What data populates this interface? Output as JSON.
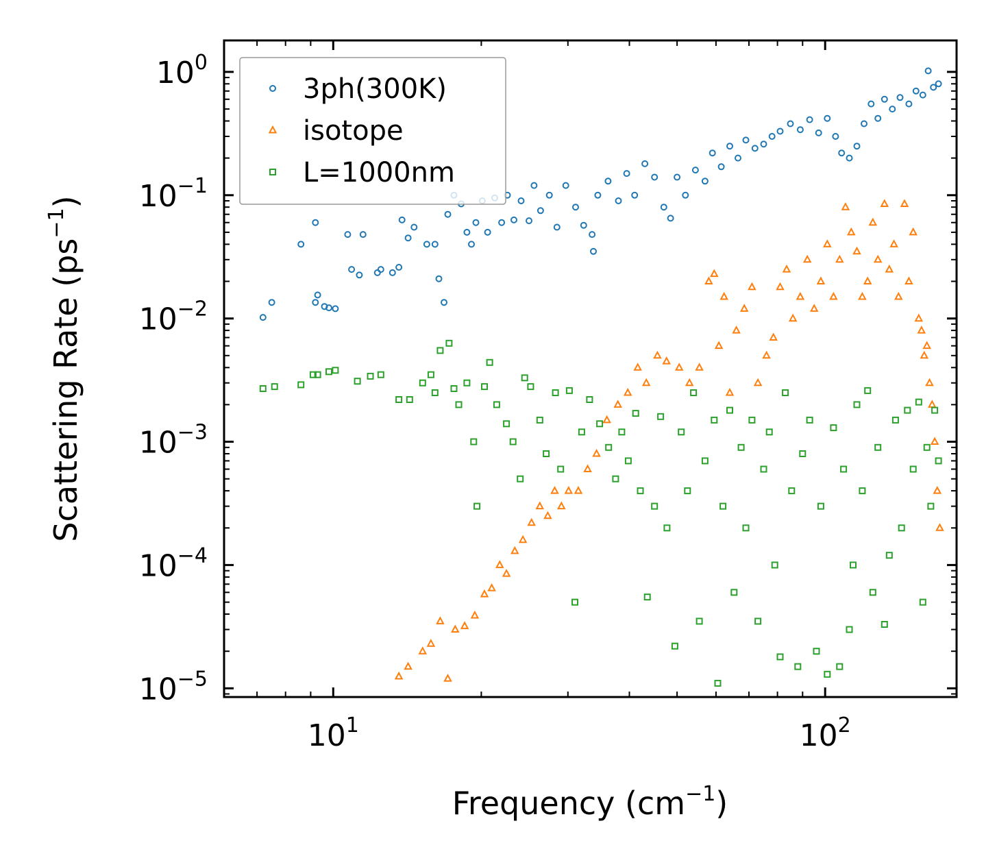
{
  "chart_data": {
    "type": "scatter",
    "title": "",
    "xscale": "log",
    "yscale": "log",
    "xlim": [
      6.0,
      185
    ],
    "ylim": [
      8.5e-06,
      1.8
    ],
    "xlabel": {
      "text": "Frequency (cm",
      "sup": "−1",
      "tail": ")"
    },
    "ylabel": {
      "text": "Scattering Rate (ps",
      "sup": "−1",
      "tail": ")"
    },
    "xticks": [
      {
        "value": 10,
        "base": "10",
        "exp": "1"
      },
      {
        "value": 100,
        "base": "10",
        "exp": "2"
      }
    ],
    "yticks": [
      {
        "value": 1,
        "base": "10",
        "exp": "0"
      },
      {
        "value": 0.1,
        "base": "10",
        "exp": "−1"
      },
      {
        "value": 0.01,
        "base": "10",
        "exp": "−2"
      },
      {
        "value": 0.001,
        "base": "10",
        "exp": "−3"
      },
      {
        "value": 0.0001,
        "base": "10",
        "exp": "−4"
      },
      {
        "value": 1e-05,
        "base": "10",
        "exp": "−5"
      }
    ],
    "legend_position": "upper-left",
    "series": [
      {
        "name": "3ph(300K)",
        "marker": "circle",
        "color": "#1f77b4",
        "sampled": true,
        "points": [
          [
            7.2,
            0.0102
          ],
          [
            7.5,
            0.0135
          ],
          [
            8.6,
            0.04
          ],
          [
            9.2,
            0.06
          ],
          [
            9.2,
            0.0135
          ],
          [
            9.3,
            0.0155
          ],
          [
            9.6,
            0.0125
          ],
          [
            9.8,
            0.0122
          ],
          [
            10.1,
            0.012
          ],
          [
            10.7,
            0.048
          ],
          [
            10.9,
            0.025
          ],
          [
            11.3,
            0.0225
          ],
          [
            11.5,
            0.048
          ],
          [
            12.3,
            0.0235
          ],
          [
            12.5,
            0.025
          ],
          [
            13.2,
            0.0235
          ],
          [
            13.6,
            0.026
          ],
          [
            13.8,
            0.063
          ],
          [
            14.2,
            0.045
          ],
          [
            14.6,
            0.055
          ],
          [
            15.5,
            0.04
          ],
          [
            16.1,
            0.04
          ],
          [
            16.4,
            0.021
          ],
          [
            16.8,
            0.0135
          ],
          [
            17.1,
            0.07
          ],
          [
            17.6,
            0.1
          ],
          [
            18.2,
            0.085
          ],
          [
            18.7,
            0.05
          ],
          [
            19.1,
            0.04
          ],
          [
            19.5,
            0.06
          ],
          [
            20.1,
            0.09
          ],
          [
            20.6,
            0.05
          ],
          [
            21.3,
            0.095
          ],
          [
            22.0,
            0.06
          ],
          [
            22.6,
            0.1
          ],
          [
            23.3,
            0.063
          ],
          [
            24.1,
            0.09
          ],
          [
            25.0,
            0.062
          ],
          [
            25.6,
            0.12
          ],
          [
            26.4,
            0.075
          ],
          [
            27.5,
            0.1
          ],
          [
            28.5,
            0.055
          ],
          [
            29.7,
            0.12
          ],
          [
            31.1,
            0.08
          ],
          [
            32.3,
            0.057
          ],
          [
            33.6,
            0.048
          ],
          [
            33.8,
            0.035
          ],
          [
            34.5,
            0.1
          ],
          [
            36.2,
            0.13
          ],
          [
            38.0,
            0.09
          ],
          [
            39.5,
            0.15
          ],
          [
            41.0,
            0.1
          ],
          [
            43.0,
            0.18
          ],
          [
            45.0,
            0.14
          ],
          [
            47.0,
            0.08
          ],
          [
            48.5,
            0.065
          ],
          [
            50.0,
            0.14
          ],
          [
            52.0,
            0.1
          ],
          [
            54.5,
            0.16
          ],
          [
            57.0,
            0.13
          ],
          [
            59.0,
            0.22
          ],
          [
            61.5,
            0.17
          ],
          [
            64.0,
            0.25
          ],
          [
            66.5,
            0.2
          ],
          [
            69.0,
            0.28
          ],
          [
            72.0,
            0.24
          ],
          [
            75.0,
            0.26
          ],
          [
            78.0,
            0.3
          ],
          [
            81.0,
            0.33
          ],
          [
            85.0,
            0.38
          ],
          [
            89.0,
            0.34
          ],
          [
            93.0,
            0.41
          ],
          [
            97.0,
            0.32
          ],
          [
            101.0,
            0.42
          ],
          [
            105.0,
            0.3
          ],
          [
            108.0,
            0.22
          ],
          [
            112.0,
            0.2
          ],
          [
            116.0,
            0.25
          ],
          [
            120.0,
            0.38
          ],
          [
            124.0,
            0.55
          ],
          [
            128.0,
            0.42
          ],
          [
            132.0,
            0.6
          ],
          [
            137.0,
            0.5
          ],
          [
            142.0,
            0.62
          ],
          [
            148.0,
            0.55
          ],
          [
            153.0,
            0.7
          ],
          [
            158.0,
            0.65
          ],
          [
            162.0,
            1.02
          ],
          [
            166.0,
            0.75
          ],
          [
            170.0,
            0.8
          ]
        ]
      },
      {
        "name": "isotope",
        "marker": "triangle",
        "color": "#ff7f0e",
        "sampled": true,
        "points": [
          [
            13.6,
            1.25e-05
          ],
          [
            14.2,
            1.5e-05
          ],
          [
            15.2,
            2e-05
          ],
          [
            15.8,
            2.3e-05
          ],
          [
            16.5,
            3.5e-05
          ],
          [
            17.1,
            1.2e-05
          ],
          [
            17.7,
            3e-05
          ],
          [
            18.5,
            3.2e-05
          ],
          [
            19.4,
            3.9e-05
          ],
          [
            20.3,
            5.8e-05
          ],
          [
            21.0,
            6.5e-05
          ],
          [
            21.8,
            0.0001
          ],
          [
            22.5,
            8.5e-05
          ],
          [
            23.4,
            0.00013
          ],
          [
            24.3,
            0.00016
          ],
          [
            25.3,
            0.00022
          ],
          [
            26.3,
            0.0003
          ],
          [
            27.3,
            0.00025
          ],
          [
            28.2,
            0.0004
          ],
          [
            29.1,
            0.0003
          ],
          [
            30.1,
            0.0004
          ],
          [
            31.5,
            0.0004
          ],
          [
            32.9,
            0.0006
          ],
          [
            34.3,
            0.0008
          ],
          [
            36.0,
            0.0015
          ],
          [
            37.9,
            0.002
          ],
          [
            39.7,
            0.0025
          ],
          [
            41.6,
            0.004
          ],
          [
            43.3,
            0.003
          ],
          [
            45.6,
            0.005
          ],
          [
            47.6,
            0.0045
          ],
          [
            50.5,
            0.004
          ],
          [
            53.0,
            0.003
          ],
          [
            55.5,
            0.004
          ],
          [
            58.0,
            0.02
          ],
          [
            59.5,
            0.023
          ],
          [
            60.8,
            0.006
          ],
          [
            62.3,
            0.015
          ],
          [
            64.0,
            0.0025
          ],
          [
            66.0,
            0.008
          ],
          [
            68.5,
            0.012
          ],
          [
            71.0,
            0.018
          ],
          [
            73.0,
            0.003
          ],
          [
            76.0,
            0.005
          ],
          [
            78.5,
            0.007
          ],
          [
            81.0,
            0.018
          ],
          [
            83.5,
            0.025
          ],
          [
            86.0,
            0.01
          ],
          [
            89.0,
            0.015
          ],
          [
            92.0,
            0.03
          ],
          [
            95.0,
            0.012
          ],
          [
            98.0,
            0.02
          ],
          [
            101.0,
            0.04
          ],
          [
            104.0,
            0.015
          ],
          [
            107.0,
            0.03
          ],
          [
            110.0,
            0.08
          ],
          [
            113.0,
            0.05
          ],
          [
            116.0,
            0.035
          ],
          [
            119.0,
            0.015
          ],
          [
            122.0,
            0.02
          ],
          [
            125.0,
            0.06
          ],
          [
            128.0,
            0.03
          ],
          [
            132.0,
            0.085
          ],
          [
            135.0,
            0.025
          ],
          [
            138.0,
            0.04
          ],
          [
            141.0,
            0.015
          ],
          [
            145.0,
            0.085
          ],
          [
            148.0,
            0.02
          ],
          [
            151.0,
            0.05
          ],
          [
            155.0,
            0.01
          ],
          [
            159.0,
            0.005
          ],
          [
            163.0,
            0.003
          ],
          [
            165.0,
            0.002
          ],
          [
            167.0,
            0.001
          ],
          [
            169.0,
            0.0004
          ],
          [
            171.0,
            0.0002
          ],
          [
            161.0,
            0.006
          ],
          [
            157.0,
            0.008
          ]
        ]
      },
      {
        "name": "L=1000nm",
        "marker": "square",
        "color": "#2ca02c",
        "sampled": true,
        "points": [
          [
            7.2,
            0.0027
          ],
          [
            7.6,
            0.0028
          ],
          [
            8.6,
            0.0029
          ],
          [
            9.1,
            0.0035
          ],
          [
            9.3,
            0.0035
          ],
          [
            9.8,
            0.0037
          ],
          [
            10.1,
            0.0038
          ],
          [
            11.2,
            0.0031
          ],
          [
            11.9,
            0.0034
          ],
          [
            12.5,
            0.0035
          ],
          [
            13.6,
            0.0022
          ],
          [
            14.3,
            0.0022
          ],
          [
            15.2,
            0.003
          ],
          [
            15.8,
            0.0035
          ],
          [
            16.1,
            0.0025
          ],
          [
            16.5,
            0.0055
          ],
          [
            17.2,
            0.0063
          ],
          [
            17.6,
            0.0027
          ],
          [
            18.0,
            0.002
          ],
          [
            18.7,
            0.003
          ],
          [
            19.3,
            0.001
          ],
          [
            19.6,
            0.0003
          ],
          [
            20.3,
            0.0028
          ],
          [
            20.8,
            0.0044
          ],
          [
            21.5,
            0.002
          ],
          [
            22.5,
            0.0014
          ],
          [
            23.2,
            0.001
          ],
          [
            24.0,
            0.0005
          ],
          [
            24.5,
            0.0033
          ],
          [
            25.2,
            0.0028
          ],
          [
            26.3,
            0.0015
          ],
          [
            27.1,
            0.0008
          ],
          [
            28.3,
            0.0025
          ],
          [
            29.0,
            0.0006
          ],
          [
            30.2,
            0.0026
          ],
          [
            31.0,
            5e-05
          ],
          [
            32.0,
            0.0012
          ],
          [
            33.2,
            0.0022
          ],
          [
            34.8,
            0.0014
          ],
          [
            36.3,
            0.0009
          ],
          [
            37.5,
            0.0005
          ],
          [
            38.6,
            0.0012
          ],
          [
            39.8,
            0.0007
          ],
          [
            41.2,
            0.0017
          ],
          [
            42.1,
            0.0004
          ],
          [
            43.5,
            5.5e-05
          ],
          [
            45.0,
            0.0003
          ],
          [
            46.3,
            0.0016
          ],
          [
            47.7,
            0.0002
          ],
          [
            49.5,
            2.2e-05
          ],
          [
            51.0,
            0.0012
          ],
          [
            52.5,
            0.0004
          ],
          [
            54.0,
            0.0025
          ],
          [
            55.5,
            3.5e-05
          ],
          [
            57.0,
            0.0007
          ],
          [
            59.5,
            0.0015
          ],
          [
            60.5,
            1.1e-05
          ],
          [
            62.0,
            0.0003
          ],
          [
            64.0,
            0.0018
          ],
          [
            65.3,
            6e-05
          ],
          [
            67.5,
            0.0009
          ],
          [
            69.0,
            0.0002
          ],
          [
            71.0,
            0.0015
          ],
          [
            73.0,
            3.5e-05
          ],
          [
            75.0,
            0.0006
          ],
          [
            77.0,
            0.0012
          ],
          [
            79.0,
            0.0001
          ],
          [
            81.0,
            1.8e-05
          ],
          [
            83.0,
            0.0025
          ],
          [
            85.5,
            0.0004
          ],
          [
            88.0,
            1.5e-05
          ],
          [
            90.0,
            0.0008
          ],
          [
            93.0,
            0.0015
          ],
          [
            96.0,
            2e-05
          ],
          [
            98.0,
            0.0003
          ],
          [
            101.0,
            1.3e-05
          ],
          [
            104.0,
            0.0013
          ],
          [
            107.0,
            1.5e-05
          ],
          [
            109.0,
            0.0006
          ],
          [
            112.0,
            3e-05
          ],
          [
            114.0,
            0.0001
          ],
          [
            116.0,
            0.002
          ],
          [
            119.0,
            0.0004
          ],
          [
            122.0,
            0.0026
          ],
          [
            125.0,
            6e-05
          ],
          [
            128.0,
            0.0009
          ],
          [
            132.0,
            3.3e-05
          ],
          [
            135.0,
            0.00012
          ],
          [
            139.0,
            0.0015
          ],
          [
            143.0,
            0.0002
          ],
          [
            147.0,
            0.0018
          ],
          [
            151.0,
            0.0006
          ],
          [
            155.0,
            0.0021
          ],
          [
            158.0,
            5e-05
          ],
          [
            161.0,
            0.0009
          ],
          [
            164.0,
            0.0003
          ],
          [
            167.0,
            0.0018
          ],
          [
            170.0,
            0.0007
          ]
        ]
      }
    ]
  }
}
